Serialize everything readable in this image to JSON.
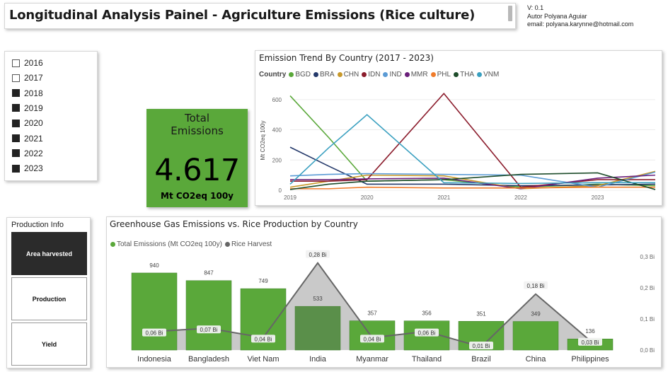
{
  "header": {
    "title": "Longitudinal Analysis Painel  - Agriculture Emissions (Rice culture)",
    "version": "V: 0.1",
    "author": "Autor Polyana Aguiar",
    "email": "email: polyana.karynne@hotmail.com"
  },
  "year_slicer": {
    "items": [
      {
        "label": "2016",
        "checked": false
      },
      {
        "label": "2017",
        "checked": false
      },
      {
        "label": "2018",
        "checked": true
      },
      {
        "label": "2019",
        "checked": true
      },
      {
        "label": "2020",
        "checked": true
      },
      {
        "label": "2021",
        "checked": true
      },
      {
        "label": "2022",
        "checked": true
      },
      {
        "label": "2023",
        "checked": true
      }
    ]
  },
  "kpi": {
    "label_line1": "Total",
    "label_line2": "Emissions",
    "value": "4.617",
    "unit": "Mt CO2eq 100y",
    "color": "#5aa83a"
  },
  "trend_chart": {
    "title": "Emission Trend By Country (2017 - 2023)",
    "legend_title": "Country",
    "ylabel": "Mt CO2eq 100y"
  },
  "production_info": {
    "title": "Production Info",
    "buttons": [
      {
        "label": "Area harvested",
        "active": true
      },
      {
        "label": "Production",
        "active": false
      },
      {
        "label": "Yield",
        "active": false
      }
    ]
  },
  "ghg_chart": {
    "title": "Greenhouse Gas Emissions vs. Rice Production by Country",
    "legend": [
      {
        "label": "Total Emissions (Mt CO2eq 100y)",
        "color": "#5aa83a"
      },
      {
        "label": "Rice Harvest",
        "color": "#666666"
      }
    ]
  },
  "chart_data": [
    {
      "type": "line",
      "title": "Emission Trend By Country (2017 - 2023)",
      "ylabel": "Mt CO2eq 100y",
      "x": [
        2019,
        2019.5,
        2020,
        2021,
        2022,
        2023,
        2023.75
      ],
      "x_ticks": [
        "2019",
        "2020",
        "2021",
        "2022",
        "2023"
      ],
      "y_ticks": [
        0,
        200,
        400,
        600
      ],
      "ylim": [
        0,
        660
      ],
      "legend_position": "top-left",
      "series": [
        {
          "name": "BGD",
          "color": "#5aa83a",
          "values": [
            625,
            350,
            60,
            70,
            20,
            40,
            30
          ]
        },
        {
          "name": "BRA",
          "color": "#253a6b",
          "values": [
            285,
            160,
            40,
            40,
            30,
            35,
            40
          ]
        },
        {
          "name": "CHN",
          "color": "#c8992a",
          "values": [
            20,
            60,
            100,
            95,
            10,
            30,
            125
          ]
        },
        {
          "name": "IDN",
          "color": "#8b1c2c",
          "values": [
            60,
            60,
            70,
            640,
            20,
            70,
            70
          ]
        },
        {
          "name": "IND",
          "color": "#5b9bd5",
          "values": [
            95,
            105,
            110,
            105,
            100,
            20,
            120
          ]
        },
        {
          "name": "MMR",
          "color": "#6a1f7a",
          "values": [
            70,
            70,
            75,
            80,
            10,
            80,
            100
          ]
        },
        {
          "name": "PHL",
          "color": "#f07c2b",
          "values": [
            10,
            10,
            20,
            15,
            15,
            20,
            20
          ]
        },
        {
          "name": "THA",
          "color": "#1e4d2b",
          "values": [
            5,
            40,
            60,
            70,
            105,
            115,
            5
          ]
        },
        {
          "name": "VNM",
          "color": "#3aa0c0",
          "values": [
            40,
            280,
            500,
            50,
            45,
            50,
            50
          ]
        }
      ]
    },
    {
      "type": "bar",
      "title": "Greenhouse Gas Emissions vs. Rice Production by Country",
      "categories": [
        "Indonesia",
        "Bangladesh",
        "Viet Nam",
        "India",
        "Myanmar",
        "Thailand",
        "Brazil",
        "China",
        "Philippines"
      ],
      "series": [
        {
          "name": "Total Emissions (Mt CO2eq 100y)",
          "color": "#5aa83a",
          "values": [
            940,
            847,
            749,
            533,
            357,
            356,
            351,
            349,
            136
          ],
          "labels": [
            "940",
            "847",
            "749",
            "533",
            "357",
            "356",
            "351",
            "349",
            "136"
          ]
        },
        {
          "name": "Rice Harvest",
          "color": "#666666",
          "values": [
            0.06,
            0.07,
            0.04,
            0.28,
            0.04,
            0.06,
            0.01,
            0.18,
            0.03
          ],
          "labels": [
            "0,06 Bi",
            "0,07 Bi",
            "0,04 Bi",
            "0,28 Bi",
            "0,04 Bi",
            "0,06 Bi",
            "0,01 Bi",
            "0,18 Bi",
            "0,03 Bi"
          ]
        }
      ],
      "y2_ticks": [
        "0,3 Bi",
        "0,2 Bi",
        "0,1 Bi",
        "0,0 Bi"
      ],
      "y2lim": [
        0,
        0.3
      ],
      "ylim": [
        0,
        1000
      ]
    }
  ]
}
